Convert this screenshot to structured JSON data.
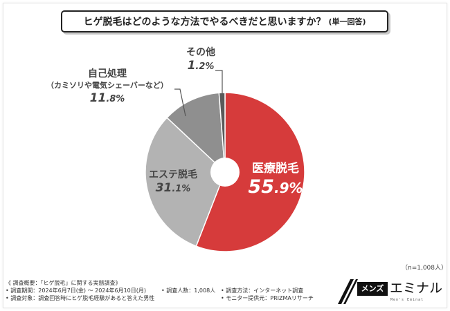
{
  "chart_data": {
    "type": "pie",
    "title": "ヒゲ脱毛はどのような方法でやるべきだと思いますか？",
    "title_note": "(単一回答)",
    "sample_note": "（n=1,008人）",
    "slices": [
      {
        "label": "医療脱毛",
        "note": "",
        "value": 55.9,
        "pct_int": "55",
        "pct_dec": ".9%",
        "color": "#d63b3b",
        "label_color": "#ffffff"
      },
      {
        "label": "エステ脱毛",
        "note": "",
        "value": 31.1,
        "pct_int": "31",
        "pct_dec": ".1%",
        "color": "#b3b3b3",
        "label_color": "#444444"
      },
      {
        "label": "自己処理",
        "note": "（カミソリや電気シェーバーなど）",
        "value": 11.8,
        "pct_int": "11",
        "pct_dec": ".8%",
        "color": "#8f8f8f",
        "label_color": "#444444"
      },
      {
        "label": "その他",
        "note": "",
        "value": 1.2,
        "pct_int": "1",
        "pct_dec": ".2%",
        "color": "#5a5a5a",
        "label_color": "#444444"
      }
    ]
  },
  "footer": {
    "heading": "《 調査概要：「ヒゲ脱毛」に関する実態調査》",
    "period": "• 調査期間：2024年6月7日(金) 〜 2024年6月10日(月)",
    "people": "• 調査人数：1,008人",
    "method": "• 調査方法：インターネット調査",
    "target": "• 調査対象：調査回答時にヒゲ脱毛経験があると答えた男性",
    "provider": "• モニター提供元：PRIZMAリサーチ"
  },
  "logo": {
    "mens": "メンズ",
    "eminal": "エミナル",
    "tagline": "Men's Eminal"
  }
}
